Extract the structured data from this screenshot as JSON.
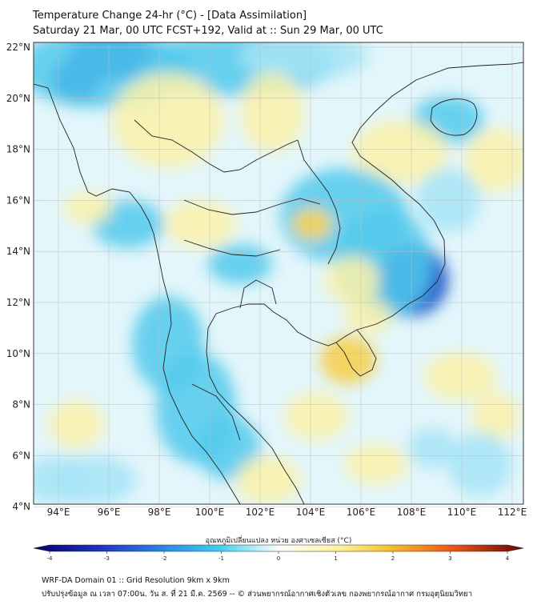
{
  "header": {
    "title_line1": "Temperature Change 24-hr (°C) - [Data Assimilation]",
    "title_line2": "Saturday 21 Mar, 00 UTC FCST+192, Valid at :: Sun 29 Mar, 00 UTC"
  },
  "map": {
    "lat_labels": [
      "22°N",
      "20°N",
      "18°N",
      "16°N",
      "14°N",
      "12°N",
      "10°N",
      "8°N",
      "6°N",
      "4°N"
    ],
    "lon_labels": [
      "94°E",
      "96°E",
      "98°E",
      "100°E",
      "102°E",
      "104°E",
      "106°E",
      "108°E",
      "110°E",
      "112°E"
    ],
    "colors": {
      "background": "#e3f6fb",
      "cold_strong": "#1a58c8",
      "cold": "#52c9ec",
      "cool": "#a6e4f6",
      "warm": "#fbf1a8",
      "warm_strong": "#f4d25a",
      "coastline": "#222222",
      "grid": "#bdbdbd"
    }
  },
  "colorbar": {
    "title": "อุณหภูมิเปลี่ยนแปลง หน่วย องศาเซลเซียส (°C)",
    "tick_labels": [
      "-4",
      "-3",
      "-2",
      "-1",
      "0",
      "1",
      "2",
      "3",
      "4"
    ],
    "range": [
      -4,
      4
    ]
  },
  "footer": {
    "line1": "WRF-DA Domain 01 :: Grid Resolution 9km x 9km",
    "line2": "ปรับปรุงข้อมูล ณ เวลา 07:00น. วัน ส. ที่ 21 มี.ค. 2569 -- © ส่วนพยากรณ์อากาศเชิงตัวเลข กองพยากรณ์อากาศ กรมอุตุนิยมวิทยา"
  }
}
